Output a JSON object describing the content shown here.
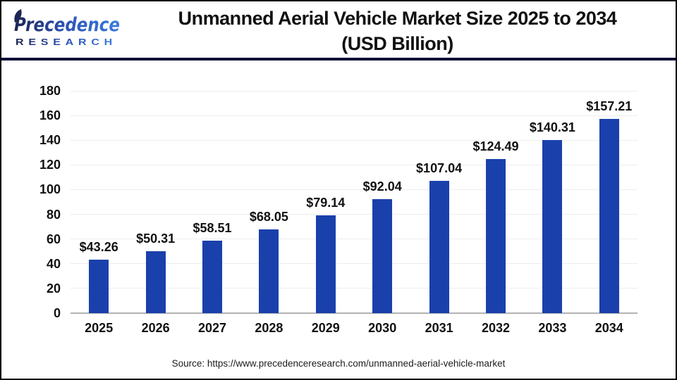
{
  "header": {
    "logo_line1": "Precedence",
    "logo_line2": "RESEARCH",
    "title_line1": "Unmanned Aerial Vehicle Market Size 2025 to 2034",
    "title_line2": "(USD Billion)",
    "logo_color_dark": "#1d2553",
    "logo_color_light": "#3b7de0"
  },
  "chart_data": {
    "type": "bar",
    "title": "Unmanned Aerial Vehicle Market Size 2025 to 2034 (USD Billion)",
    "categories": [
      "2025",
      "2026",
      "2027",
      "2028",
      "2029",
      "2030",
      "2031",
      "2032",
      "2033",
      "2034"
    ],
    "values": [
      43.26,
      50.31,
      58.51,
      68.05,
      79.14,
      92.04,
      107.04,
      124.49,
      140.31,
      157.21
    ],
    "labels": [
      "$43.26",
      "$50.31",
      "$58.51",
      "$68.05",
      "$79.14",
      "$92.04",
      "$107.04",
      "$124.49",
      "$140.31",
      "$157.21"
    ],
    "xlabel": "",
    "ylabel": "",
    "ylim": [
      0,
      180
    ],
    "ytick_step": 20,
    "grid": true,
    "legend": "none",
    "bar_color": "#1a40ab",
    "gridline_color": "#ededed",
    "baseline_color": "#b3b3b3"
  },
  "footer": {
    "source": "Source: https://www.precedenceresearch.com/unmanned-aerial-vehicle-market"
  }
}
